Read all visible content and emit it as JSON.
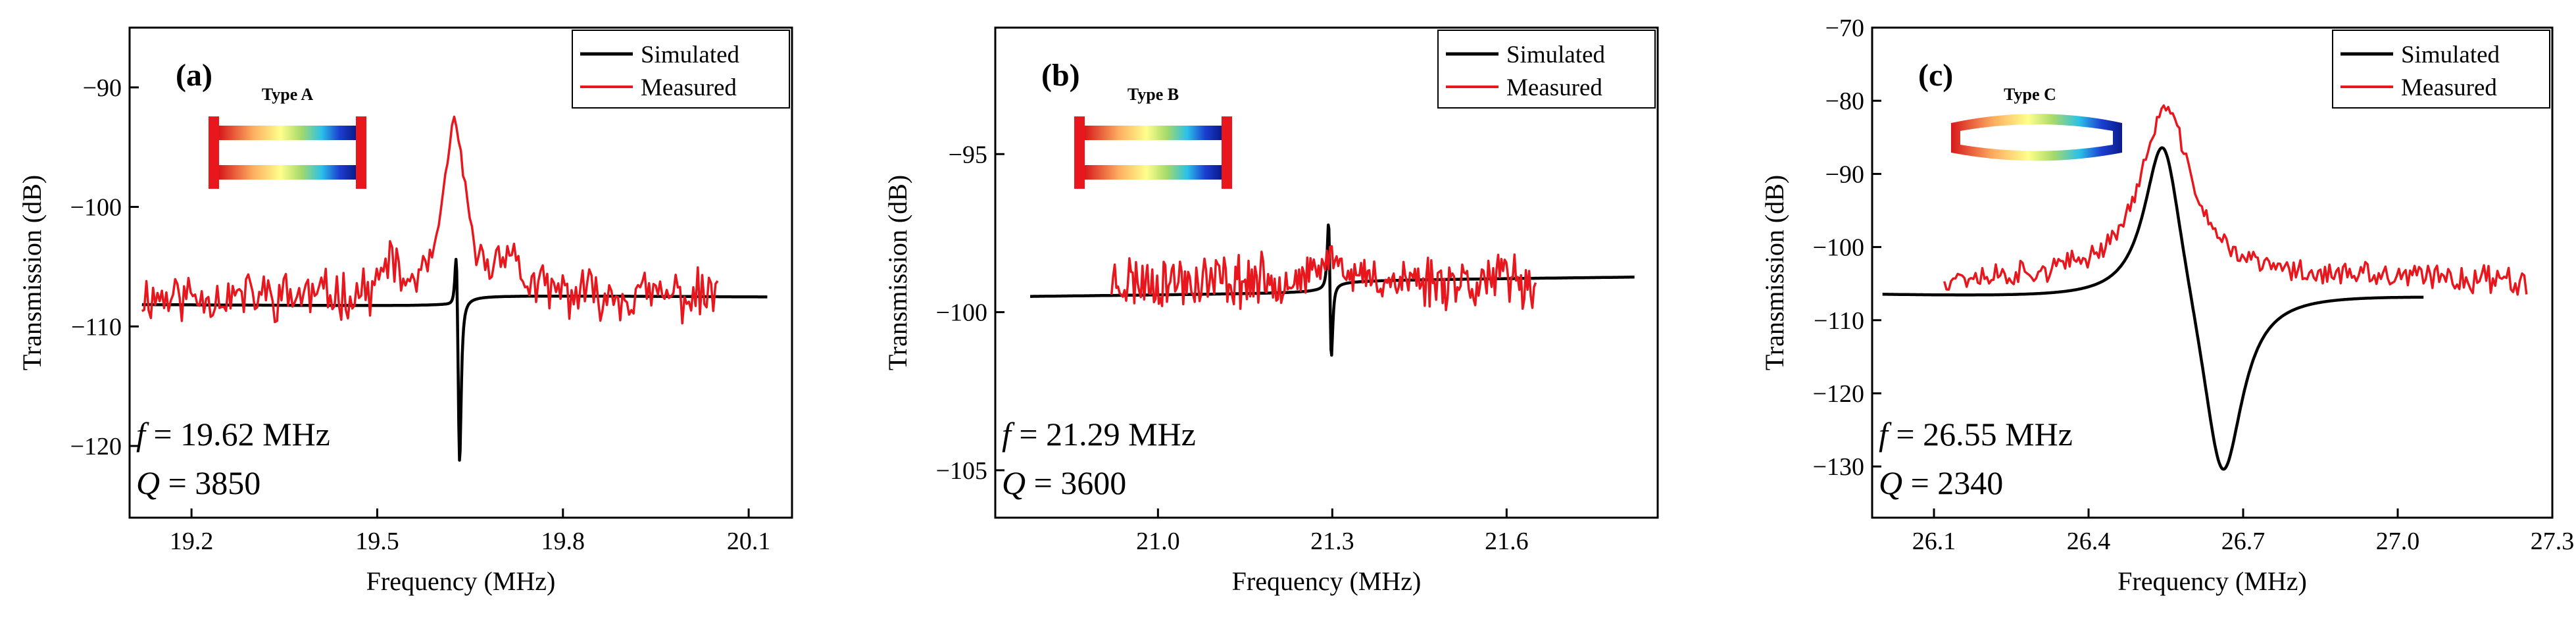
{
  "chart_data": [
    {
      "type": "line",
      "panel_label": "(a)",
      "mode_label": "Type A",
      "xlabel": "Frequency (MHz)",
      "ylabel": "Transmission (dB)",
      "xlim": [
        19.1,
        20.17
      ],
      "ylim": [
        -126,
        -85
      ],
      "xticks": [
        19.2,
        19.5,
        19.8,
        20.1
      ],
      "xtick_labels": [
        "19.2",
        "19.5",
        "19.8",
        "20.1"
      ],
      "yticks": [
        -120,
        -110,
        -100,
        -90
      ],
      "ytick_labels": [
        "−120",
        "−110",
        "−100",
        "−90"
      ],
      "legend": [
        "Simulated",
        "Measured"
      ],
      "annotation_f": {
        "symbol": "f",
        "text": " = 19.62 MHz"
      },
      "annotation_q": {
        "symbol": "Q",
        "text": " = 3850"
      },
      "series": [
        {
          "name": "Simulated",
          "model": "fano",
          "x_range": [
            19.12,
            20.13
          ],
          "base": -107.7,
          "slope": -0.3,
          "f0": 19.628,
          "A": 7.5,
          "fn": 19.633,
          "An": 15.5,
          "gamma": 0.003
        },
        {
          "name": "Measured",
          "model": "noisy",
          "x_range": [
            19.12,
            20.05
          ],
          "base": -107.5,
          "slope": 0,
          "f0": 19.625,
          "A": 14.5,
          "gamma": 0.02,
          "noise": 1.8,
          "seed": 11,
          "extras": [
            [
              19.52,
              3.0,
              0.01
            ],
            [
              19.71,
              3.5,
              0.018
            ]
          ]
        }
      ]
    },
    {
      "type": "line",
      "panel_label": "(b)",
      "mode_label": "Type B",
      "xlabel": "Frequency (MHz)",
      "ylabel": "Transmission (dB)",
      "xlim": [
        20.72,
        21.86
      ],
      "ylim": [
        -106.5,
        -91
      ],
      "xticks": [
        21.0,
        21.3,
        21.6
      ],
      "xtick_labels": [
        "21.0",
        "21.3",
        "21.6"
      ],
      "yticks": [
        -105,
        -100,
        -95
      ],
      "ytick_labels": [
        "−105",
        "−100",
        "−95"
      ],
      "legend": [
        "Simulated",
        "Measured"
      ],
      "annotation_f": {
        "symbol": "f",
        "text": " = 21.29 MHz"
      },
      "annotation_q": {
        "symbol": "Q",
        "text": " = 3600"
      },
      "series": [
        {
          "name": "Simulated",
          "model": "fano",
          "x_range": [
            20.78,
            21.82
          ],
          "base": -99.3,
          "slope": 0.2,
          "f0": 21.294,
          "A": 3.2,
          "fn": 21.298,
          "An": 3.3,
          "gamma": 0.003
        },
        {
          "name": "Measured",
          "model": "noisy",
          "x_range": [
            20.92,
            21.65
          ],
          "base": -99.0,
          "slope": 0,
          "f0": 21.3,
          "A": 0.8,
          "gamma": 0.02,
          "noise": 0.75,
          "seed": 23,
          "extras": []
        }
      ]
    },
    {
      "type": "line",
      "panel_label": "(c)",
      "mode_label": "Type C",
      "xlabel": "Frequency (MHz)",
      "ylabel": "Transmission (dB)",
      "xlim": [
        25.98,
        27.3
      ],
      "ylim": [
        -137,
        -70
      ],
      "xticks": [
        26.1,
        26.4,
        26.7,
        27.0,
        27.3
      ],
      "xtick_labels": [
        "26.1",
        "26.4",
        "26.7",
        "27.0",
        "27.3"
      ],
      "yticks": [
        -130,
        -120,
        -110,
        -100,
        -90,
        -80,
        -70
      ],
      "ytick_labels": [
        "−130",
        "−120",
        "−110",
        "−100",
        "−90",
        "−80",
        "−70"
      ],
      "legend": [
        "Simulated",
        "Measured"
      ],
      "annotation_f": {
        "symbol": "f",
        "text": " = 26.55 MHz"
      },
      "annotation_q": {
        "symbol": "Q",
        "text": " = 2340"
      },
      "series": [
        {
          "name": "Simulated",
          "model": "fano",
          "x_range": [
            26.0,
            27.05
          ],
          "base": -105.5,
          "slope": -2.0,
          "f0": 26.545,
          "A": 24.0,
          "fn": 26.66,
          "An": 27.0,
          "gamma": 0.045
        },
        {
          "name": "Measured",
          "model": "noisy",
          "x_range": [
            26.12,
            27.25
          ],
          "base": -104.5,
          "slope": 0,
          "f0": 26.55,
          "A": 23.5,
          "gamma": 0.06,
          "noise": 1.8,
          "seed": 37,
          "extras": []
        }
      ]
    }
  ],
  "colors": {
    "simulated": "#000000",
    "measured": "#e8161d",
    "axes": "#000000"
  }
}
